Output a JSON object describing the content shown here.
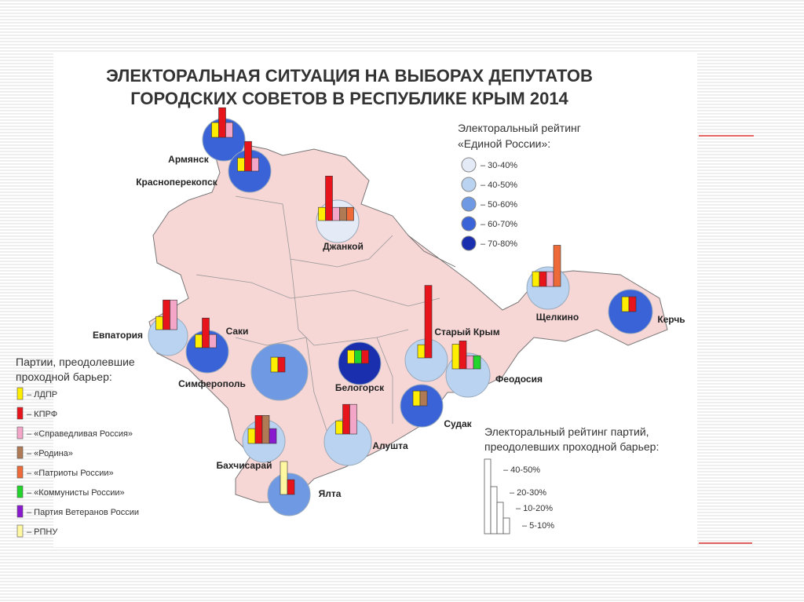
{
  "title": {
    "line1": "ЭЛЕКТОРАЛЬНАЯ СИТУАЦИЯ НА ВЫБОРАХ ДЕПУТАТОВ",
    "line2": "ГОРОДСКИХ СОВЕТОВ В РЕСПУБЛИКЕ КРЫМ 2014"
  },
  "er_legend": {
    "title1": "Электоральный рейтинг",
    "title2": "«Единой России»:",
    "items": [
      {
        "label": "– 30-40%",
        "color": "#e4ebf7"
      },
      {
        "label": "– 40-50%",
        "color": "#b9d3f1"
      },
      {
        "label": "– 50-60%",
        "color": "#7099e4"
      },
      {
        "label": "– 60-70%",
        "color": "#3b63d8"
      },
      {
        "label": "– 70-80%",
        "color": "#1a2fae"
      }
    ]
  },
  "party_legend": {
    "title1": "Партии, преодолевшие",
    "title2": "проходной барьер:",
    "items": [
      {
        "label": "– ЛДПР",
        "color": "#ffee00"
      },
      {
        "label": "– КПРФ",
        "color": "#e8141c"
      },
      {
        "label": "– «Справедливая Россия»",
        "color": "#f4a6c8"
      },
      {
        "label": "– «Родина»",
        "color": "#b07a55"
      },
      {
        "label": "– «Патриоты России»",
        "color": "#ee6a38"
      },
      {
        "label": "– «Коммунисты России»",
        "color": "#22d42c"
      },
      {
        "label": "– Партия Ветеранов России",
        "color": "#8a1ad0"
      },
      {
        "label": "– РПНУ",
        "color": "#fff8a0"
      }
    ]
  },
  "bar_legend": {
    "title1": "Электоральный рейтинг партий,",
    "title2": "преодолевших проходной барьер:",
    "items": [
      "– 40-50%",
      "– 20-30%",
      "– 10-20%",
      "– 5-10%"
    ]
  },
  "cities": [
    {
      "label": "Армянск",
      "color": "#3b63d8",
      "bars": [
        {
          "color": "#ffee00",
          "value": 9
        },
        {
          "color": "#e8141c",
          "value": 18
        },
        {
          "color": "#f4a6c8",
          "value": 9
        }
      ]
    },
    {
      "label": "Красноперекопск",
      "color": "#3b63d8",
      "bars": [
        {
          "color": "#ffee00",
          "value": 8
        },
        {
          "color": "#e8141c",
          "value": 18
        },
        {
          "color": "#f4a6c8",
          "value": 8
        }
      ]
    },
    {
      "label": "Джанкой",
      "color": "#e4ebf7",
      "bars": [
        {
          "color": "#ffee00",
          "value": 8
        },
        {
          "color": "#e8141c",
          "value": 27
        },
        {
          "color": "#f4a6c8",
          "value": 8
        },
        {
          "color": "#b07a55",
          "value": 8
        },
        {
          "color": "#ee6a38",
          "value": 8
        }
      ]
    },
    {
      "label": "Евпатория",
      "color": "#b9d3f1",
      "bars": [
        {
          "color": "#ffee00",
          "value": 8
        },
        {
          "color": "#e8141c",
          "value": 18
        },
        {
          "color": "#f4a6c8",
          "value": 18
        }
      ]
    },
    {
      "label": "Саки",
      "color": "#3b63d8",
      "bars": [
        {
          "color": "#ffee00",
          "value": 8
        },
        {
          "color": "#e8141c",
          "value": 18
        },
        {
          "color": "#f4a6c8",
          "value": 8
        }
      ]
    },
    {
      "label": "Симферополь",
      "color": "#7099e4",
      "bars": [
        {
          "color": "#ffee00",
          "value": 9
        },
        {
          "color": "#e8141c",
          "value": 9
        }
      ]
    },
    {
      "label": "Белогорск",
      "color": "#1a2fae",
      "bars": [
        {
          "color": "#ffee00",
          "value": 8
        },
        {
          "color": "#22d42c",
          "value": 8
        },
        {
          "color": "#e8141c",
          "value": 8
        }
      ]
    },
    {
      "label": "Старый Крым",
      "color": "#b9d3f1",
      "bars": [
        {
          "color": "#ffee00",
          "value": 8
        },
        {
          "color": "#e8141c",
          "value": 44
        }
      ]
    },
    {
      "label": "Феодосия",
      "color": "#b9d3f1",
      "bars": [
        {
          "color": "#ffee00",
          "value": 15
        },
        {
          "color": "#e8141c",
          "value": 17
        },
        {
          "color": "#f4a6c8",
          "value": 8
        },
        {
          "color": "#22d42c",
          "value": 8
        }
      ]
    },
    {
      "label": "Судак",
      "color": "#3b63d8",
      "bars": [
        {
          "color": "#ffee00",
          "value": 9
        },
        {
          "color": "#b07a55",
          "value": 9
        }
      ]
    },
    {
      "label": "Алушта",
      "color": "#b9d3f1",
      "bars": [
        {
          "color": "#ffee00",
          "value": 8
        },
        {
          "color": "#e8141c",
          "value": 18
        },
        {
          "color": "#f4a6c8",
          "value": 18
        }
      ]
    },
    {
      "label": "Бахчисарай",
      "color": "#b9d3f1",
      "bars": [
        {
          "color": "#ffee00",
          "value": 9
        },
        {
          "color": "#e8141c",
          "value": 17
        },
        {
          "color": "#b07a55",
          "value": 17
        },
        {
          "color": "#8a1ad0",
          "value": 9
        }
      ]
    },
    {
      "label": "Ялта",
      "color": "#7099e4",
      "bars": [
        {
          "color": "#fff8a0",
          "value": 20
        },
        {
          "color": "#e8141c",
          "value": 9
        }
      ]
    },
    {
      "label": "Щелкино",
      "color": "#b9d3f1",
      "bars": [
        {
          "color": "#ffee00",
          "value": 9
        },
        {
          "color": "#e8141c",
          "value": 9
        },
        {
          "color": "#f4a6c8",
          "value": 9
        },
        {
          "color": "#ee6a38",
          "value": 25
        }
      ]
    },
    {
      "label": "Керчь",
      "color": "#3b63d8",
      "bars": [
        {
          "color": "#ffee00",
          "value": 9
        },
        {
          "color": "#e8141c",
          "value": 9
        }
      ]
    }
  ]
}
